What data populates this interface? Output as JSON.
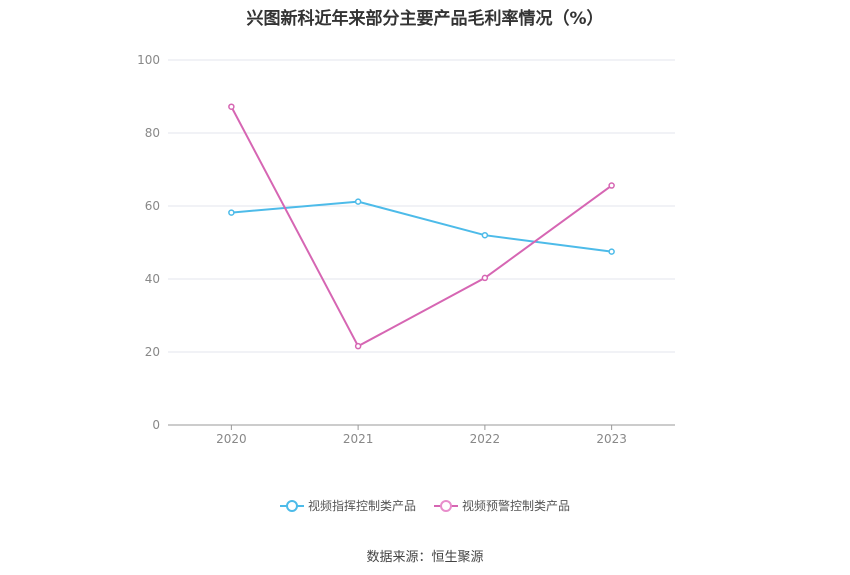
{
  "chart_data": {
    "type": "line",
    "title": "兴图新科近年来部分主要产品毛利率情况（%）",
    "categories": [
      "2020",
      "2021",
      "2022",
      "2023"
    ],
    "ylim": [
      0,
      100
    ],
    "yticks": [
      "0",
      "20",
      "40",
      "60",
      "80",
      "100"
    ],
    "grid": true,
    "legend_position": "bottom",
    "series": [
      {
        "name": "视频指挥控制类产品",
        "values": [
          58.2,
          61.2,
          52.0,
          47.5
        ],
        "color": "#4dbbe9"
      },
      {
        "name": "视频预警控制类产品",
        "values": [
          87.2,
          21.6,
          40.3,
          65.6
        ],
        "color": "#d666b3"
      }
    ]
  },
  "source": "数据来源：恒生聚源"
}
